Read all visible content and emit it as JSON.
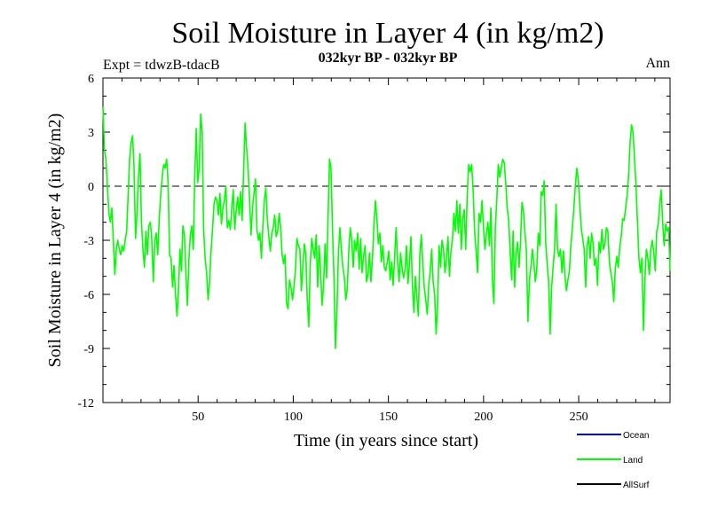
{
  "chart_data": {
    "type": "line",
    "title": "Soil Moisture in Layer 4 (in kg/m2)",
    "subtitle": "032kyr BP - 032kyr BP",
    "experiment_label": "Expt = tdwzB-tdacB",
    "period_label": "Ann",
    "xlabel": "Time (in years since start)",
    "ylabel": "Soil Moisture in Layer 4 (in kg/m2)",
    "xlim": [
      0,
      298
    ],
    "ylim": [
      -12,
      6
    ],
    "x_ticks": [
      50,
      100,
      150,
      200,
      250
    ],
    "y_ticks": [
      6,
      3,
      0,
      -3,
      -6,
      -9,
      -12
    ],
    "zero_line": "dashed",
    "legend_position": "bottom-right",
    "series": [
      {
        "name": "Ocean",
        "color": "#0000ff",
        "values": []
      },
      {
        "name": "Land",
        "color": "#00ff00",
        "x_start": 0,
        "x_step": 1,
        "values": [
          4.4,
          2.0,
          1.5,
          0.0,
          -1.5,
          -2.0,
          -1.2,
          -3.0,
          -4.9,
          -3.5,
          -3.0,
          -3.5,
          -3.8,
          -3.3,
          -3.6,
          -3.0,
          -2.5,
          -0.5,
          1.5,
          2.4,
          2.8,
          1.0,
          -2.9,
          -1.5,
          0.5,
          1.8,
          -2.0,
          -3.5,
          -4.5,
          -2.5,
          -3.8,
          -2.2,
          -2.0,
          -3.0,
          -5.3,
          -3.0,
          -2.6,
          -3.8,
          -1.8,
          -0.5,
          0.5,
          1.2,
          1.0,
          1.5,
          0.2,
          -3.8,
          -4.0,
          -5.6,
          -4.4,
          -6.0,
          -7.2,
          -5.8,
          -3.5,
          -4.7,
          -2.2,
          -2.7,
          -4.8,
          -6.6,
          -4.1,
          -2.7,
          -2.2,
          -3.5,
          0.5,
          3.2,
          0.2,
          1.0,
          4.0,
          3.0,
          -2.4,
          -4.0,
          -4.8,
          -6.3,
          -5.3,
          -3.6,
          -2.4,
          -1.0,
          -0.6,
          -0.8,
          -1.6,
          -0.4,
          -2.1,
          -1.2,
          -0.8,
          0.0,
          -2.3,
          -1.9,
          -2.4,
          -1.2,
          -0.2,
          -2.4,
          -1.3,
          -0.6,
          -1.6,
          -0.3,
          -1.9,
          0.9,
          3.5,
          2.1,
          1.0,
          -0.7,
          -2.7,
          -1.2,
          -0.4,
          0.4,
          -2.4,
          -3.0,
          -2.6,
          -4.0,
          -2.2,
          -0.8,
          -0.1,
          -1.8,
          -2.8,
          -3.6,
          -2.6,
          -2.3,
          -1.6,
          -2.8,
          -2.5,
          -1.5,
          -2.3,
          -3.8,
          -4.3,
          -3.8,
          -6.5,
          -6.8,
          -5.2,
          -5.6,
          -6.3,
          -5.6,
          -4.6,
          -2.9,
          -3.3,
          -3.5,
          -5.8,
          -4.5,
          -3.2,
          -3.8,
          -6.3,
          -7.8,
          -4.3,
          -2.9,
          -3.5,
          -4.0,
          -2.7,
          -5.6,
          -3.3,
          -4.8,
          -6.6,
          -5.5,
          -3.2,
          -5.1,
          -1.8,
          1.5,
          1.0,
          -2.3,
          -5.0,
          -9.0,
          -7.0,
          -3.8,
          -2.3,
          -3.5,
          -4.5,
          -5.0,
          -6.3,
          -5.7,
          -3.6,
          -2.3,
          -3.0,
          -4.5,
          -3.0,
          -3.6,
          -2.6,
          -4.6,
          -2.9,
          -4.8,
          -3.9,
          -3.3,
          -5.3,
          -4.9,
          -3.7,
          -5.3,
          -4.0,
          -2.2,
          -0.8,
          -1.8,
          -3.2,
          -2.6,
          -4.2,
          -3.3,
          -4.5,
          -4.7,
          -4.2,
          -3.6,
          -5.2,
          -4.2,
          -5.5,
          -3.9,
          -2.3,
          -4.2,
          -5.3,
          -3.7,
          -4.5,
          -5.1,
          -4.6,
          -3.3,
          -5.4,
          -4.3,
          -2.8,
          -5.5,
          -7.0,
          -5.0,
          -6.1,
          -7.2,
          -3.8,
          -2.7,
          -4.3,
          -5.6,
          -6.3,
          -7.1,
          -5.5,
          -4.7,
          -3.5,
          -5.3,
          -6.0,
          -8.2,
          -6.5,
          -3.3,
          -4.5,
          -3.0,
          -3.5,
          -4.8,
          -4.0,
          -2.8,
          -5.0,
          -3.6,
          -3.0,
          -1.5,
          -2.5,
          -0.8,
          -2.6,
          -1.0,
          -3.5,
          -1.8,
          -1.3,
          -3.5,
          -0.5,
          1.2,
          0.8,
          1.2,
          -0.2,
          -2.5,
          -3.6,
          -4.8,
          -1.5,
          -2.0,
          -0.8,
          -2.3,
          -3.5,
          -2.6,
          -2.0,
          -3.3,
          -1.2,
          -5.2,
          -6.5,
          -2.3,
          -0.7,
          1.2,
          0.5,
          1.0,
          1.5,
          1.3,
          0.2,
          -1.2,
          -1.9,
          -3.6,
          -5.2,
          -2.5,
          -5.6,
          -3.7,
          -3.1,
          -4.5,
          -3.1,
          -0.9,
          -1.4,
          -2.6,
          -3.6,
          -7.5,
          -5.2,
          -4.5,
          -3.5,
          -4.2,
          -5.3,
          -4.6,
          -2.6,
          -3.3,
          -0.3,
          -0.5,
          0.3,
          -3.1,
          -4.3,
          -5.3,
          -8.2,
          -5.6,
          -4.5,
          -3.5,
          -1.0,
          -3.5,
          -3.9,
          -3.5,
          -4.8,
          -3.6,
          -5.0,
          -5.8,
          -5.2,
          -4.7,
          -3.3,
          -2.3,
          -1.3,
          0.0,
          1.0,
          0.4,
          -1.0,
          -2.3,
          -2.9,
          -3.5,
          -5.6,
          -3.3,
          -2.8,
          -4.0,
          -2.6,
          -3.2,
          -4.4,
          -4.0,
          -5.5,
          -3.1,
          -3.7,
          -2.4,
          -3.5,
          -3.2,
          -2.3,
          -2.5,
          -4.2,
          -4.8,
          -5.3,
          -6.4,
          -4.6,
          -3.9,
          -4.5,
          -3.4,
          -2.8,
          -1.8,
          -1.9,
          -1.2,
          -0.5,
          0.6,
          2.4,
          3.4,
          3.0,
          1.5,
          0.0,
          -2.0,
          -4.0,
          -4.8,
          -4.0,
          -8.0,
          -5.2,
          -3.5,
          -4.0,
          -4.9,
          -3.5,
          -3.0,
          -3.7,
          -4.7,
          -2.5,
          -2.1,
          -1.0,
          -0.2,
          -2.0,
          -3.3,
          -2.1,
          -2.5,
          -2.3,
          -4.7
        ]
      },
      {
        "name": "AllSurf",
        "color": "#000000",
        "values": []
      }
    ]
  },
  "page": {
    "background": "#ffffff",
    "frame_color": "#000000"
  }
}
